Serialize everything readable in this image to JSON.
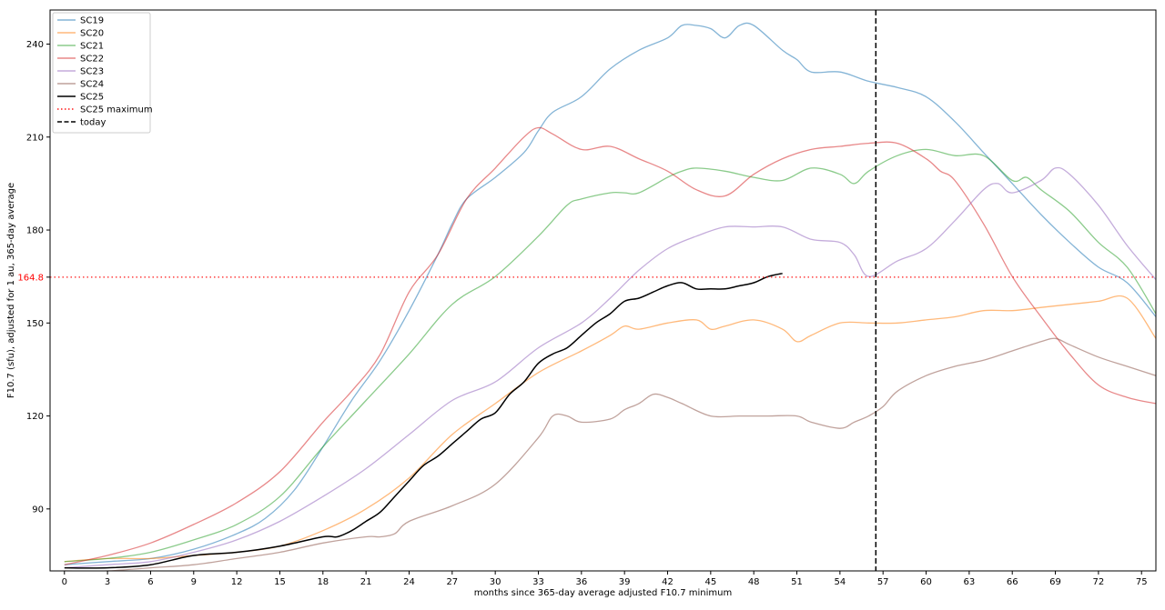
{
  "chart_data": {
    "type": "line",
    "title": "",
    "xlabel": "months since 365-day average adjusted F10.7 minimum",
    "ylabel": "F10.7 (sfu), adjusted for 1 au, 365-day average",
    "xlim": [
      -1,
      76
    ],
    "ylim": [
      70,
      251
    ],
    "x_ticks": [
      0,
      3,
      6,
      9,
      12,
      15,
      18,
      21,
      24,
      27,
      30,
      33,
      36,
      39,
      42,
      45,
      48,
      51,
      54,
      57,
      60,
      63,
      66,
      69,
      72,
      75
    ],
    "y_ticks": [
      90,
      120,
      150,
      180,
      210,
      240
    ],
    "grid": false,
    "legend_position": "top-left",
    "series": [
      {
        "name": "SC19",
        "color": "#1f77b4",
        "alpha": 0.55,
        "style": "solid",
        "x": [
          0,
          3,
          6,
          9,
          12,
          14,
          16,
          18,
          20,
          22,
          24,
          26,
          27,
          28,
          30,
          32,
          33,
          34,
          36,
          38,
          40,
          42,
          43,
          44,
          45,
          46,
          47,
          48,
          50,
          51,
          52,
          54,
          56,
          58,
          60,
          62,
          64,
          66,
          68,
          70,
          72,
          74,
          76
        ],
        "y": [
          72,
          73,
          74,
          77,
          82,
          87,
          96,
          110,
          125,
          138,
          154,
          172,
          182,
          190,
          197,
          205,
          212,
          218,
          223,
          232,
          238,
          242,
          246,
          246,
          245,
          242,
          246,
          246,
          238,
          235,
          231,
          231,
          228,
          226,
          223,
          215,
          205,
          195,
          185,
          176,
          168,
          163,
          152
        ]
      },
      {
        "name": "SC20",
        "color": "#ff7f0e",
        "alpha": 0.55,
        "style": "solid",
        "x": [
          0,
          3,
          6,
          9,
          12,
          15,
          18,
          21,
          24,
          27,
          30,
          33,
          36,
          38,
          39,
          40,
          42,
          44,
          45,
          46,
          48,
          50,
          51,
          52,
          54,
          56,
          58,
          60,
          62,
          64,
          66,
          68,
          70,
          72,
          74,
          76
        ],
        "y": [
          73,
          74,
          74,
          75,
          76,
          78,
          83,
          90,
          100,
          114,
          124,
          134,
          141,
          146,
          149,
          148,
          150,
          151,
          148,
          149,
          151,
          148,
          144,
          146,
          150,
          150,
          150,
          151,
          152,
          154,
          154,
          155,
          156,
          157,
          158,
          145
        ]
      },
      {
        "name": "SC21",
        "color": "#2ca02c",
        "alpha": 0.55,
        "style": "solid",
        "x": [
          0,
          3,
          6,
          9,
          12,
          15,
          18,
          21,
          24,
          27,
          30,
          33,
          35,
          36,
          38,
          39,
          40,
          42,
          43,
          44,
          46,
          48,
          50,
          52,
          54,
          55,
          56,
          58,
          60,
          62,
          64,
          66,
          67,
          68,
          70,
          72,
          74,
          76
        ],
        "y": [
          73,
          74,
          76,
          80,
          85,
          94,
          110,
          125,
          140,
          156,
          165,
          178,
          188,
          190,
          192,
          192,
          192,
          197,
          199,
          200,
          199,
          197,
          196,
          200,
          198,
          195,
          199,
          204,
          206,
          204,
          204,
          196,
          197,
          193,
          186,
          176,
          168,
          153
        ]
      },
      {
        "name": "SC22",
        "color": "#d62728",
        "alpha": 0.55,
        "style": "solid",
        "x": [
          0,
          3,
          6,
          9,
          12,
          15,
          18,
          20,
          22,
          24,
          26,
          28,
          30,
          32,
          33,
          34,
          36,
          38,
          40,
          42,
          44,
          46,
          48,
          50,
          52,
          54,
          56,
          58,
          60,
          61,
          62,
          64,
          66,
          68,
          70,
          72,
          74,
          76
        ],
        "y": [
          72,
          75,
          79,
          85,
          92,
          102,
          118,
          128,
          140,
          160,
          172,
          190,
          200,
          210,
          213,
          211,
          206,
          207,
          203,
          199,
          193,
          191,
          198,
          203,
          206,
          207,
          208,
          208,
          203,
          199,
          196,
          182,
          165,
          152,
          140,
          130,
          126,
          124
        ]
      },
      {
        "name": "SC23",
        "color": "#9467bd",
        "alpha": 0.55,
        "style": "solid",
        "x": [
          0,
          3,
          6,
          9,
          12,
          15,
          18,
          21,
          24,
          27,
          30,
          33,
          36,
          38,
          40,
          42,
          44,
          46,
          48,
          50,
          52,
          54,
          55,
          56,
          58,
          60,
          62,
          64,
          65,
          66,
          68,
          69,
          70,
          72,
          74,
          76
        ],
        "y": [
          71,
          72,
          73,
          76,
          80,
          86,
          94,
          103,
          114,
          125,
          131,
          142,
          150,
          158,
          167,
          174,
          178,
          181,
          181,
          181,
          177,
          176,
          172,
          165,
          170,
          174,
          183,
          193,
          195,
          192,
          196,
          200,
          198,
          188,
          175,
          164
        ]
      },
      {
        "name": "SC24",
        "color": "#8c564b",
        "alpha": 0.55,
        "style": "solid",
        "x": [
          0,
          3,
          6,
          9,
          12,
          15,
          18,
          21,
          22,
          23,
          24,
          27,
          30,
          33,
          34,
          35,
          36,
          38,
          39,
          40,
          41,
          42,
          43,
          45,
          47,
          49,
          51,
          52,
          54,
          55,
          56,
          57,
          58,
          60,
          62,
          64,
          66,
          68,
          69,
          70,
          72,
          74,
          76
        ],
        "y": [
          70,
          70,
          71,
          72,
          74,
          76,
          79,
          81,
          81,
          82,
          86,
          91,
          98,
          113,
          120,
          120,
          118,
          119,
          122,
          124,
          127,
          126,
          124,
          120,
          120,
          120,
          120,
          118,
          116,
          118,
          120,
          123,
          128,
          133,
          136,
          138,
          141,
          144,
          145,
          143,
          139,
          136,
          133
        ]
      },
      {
        "name": "SC25",
        "color": "#000000",
        "alpha": 1,
        "style": "solid",
        "x": [
          0,
          3,
          6,
          9,
          12,
          15,
          18,
          19,
          20,
          21,
          22,
          23,
          24,
          25,
          26,
          27,
          28,
          29,
          30,
          31,
          32,
          33,
          34,
          35,
          36,
          37,
          38,
          39,
          40,
          41,
          42,
          43,
          44,
          45,
          46,
          47,
          48,
          49,
          50
        ],
        "y": [
          71,
          71,
          72,
          75,
          76,
          78,
          81,
          81,
          83,
          86,
          89,
          94,
          99,
          104,
          107,
          111,
          115,
          119,
          121,
          127,
          131,
          137,
          140,
          142,
          146,
          150,
          153,
          157,
          158,
          160,
          162,
          163,
          161,
          161,
          161,
          162,
          163,
          165,
          166
        ]
      },
      {
        "name": "SC25 maximum",
        "color": "#ff0000",
        "alpha": 0.9,
        "style": "dotted",
        "hline": 164.8
      },
      {
        "name": "today",
        "color": "#000000",
        "alpha": 1,
        "style": "dashed",
        "vline": 56.5
      }
    ],
    "annotations": [
      {
        "text": "164.8",
        "color": "#ff0000",
        "y": 164.8,
        "position": "left-axis"
      }
    ]
  }
}
